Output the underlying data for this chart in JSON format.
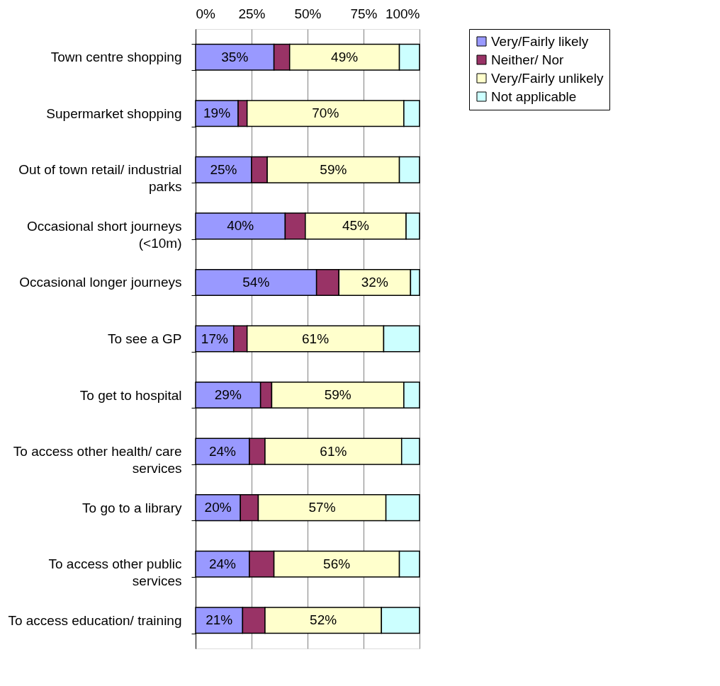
{
  "chart_data": {
    "type": "bar",
    "orientation": "horizontal",
    "stacked": true,
    "categories": [
      "Town centre shopping",
      "Supermarket shopping",
      "Out of town retail/ industrial parks",
      "Occasional short journeys (<10m)",
      "Occasional longer journeys",
      "To see a GP",
      "To get to hospital",
      "To access other health/ care services",
      "To go to a library",
      "To access other public services",
      "To access education/ training"
    ],
    "series": [
      {
        "name": "Very/Fairly likely",
        "color": "#9999ff",
        "values": [
          35,
          19,
          25,
          40,
          54,
          17,
          29,
          24,
          20,
          24,
          21
        ],
        "value_labels": [
          "35%",
          "19%",
          "25%",
          "40%",
          "54%",
          "17%",
          "29%",
          "24%",
          "20%",
          "24%",
          "21%"
        ]
      },
      {
        "name": "Neither/ Nor",
        "color": "#993366",
        "values": [
          7,
          4,
          7,
          9,
          10,
          6,
          5,
          7,
          8,
          11,
          10
        ]
      },
      {
        "name": "Very/Fairly unlikely",
        "color": "#ffffcc",
        "values": [
          49,
          70,
          59,
          45,
          32,
          61,
          59,
          61,
          57,
          56,
          52
        ],
        "value_labels": [
          "49%",
          "70%",
          "59%",
          "45%",
          "32%",
          "61%",
          "59%",
          "61%",
          "57%",
          "56%",
          "52%"
        ]
      },
      {
        "name": "Not applicable",
        "color": "#ccffff",
        "values": [
          9,
          7,
          9,
          6,
          4,
          16,
          7,
          8,
          15,
          9,
          17
        ]
      }
    ],
    "xlim": [
      0,
      100
    ],
    "xticks": [
      {
        "value": 0,
        "label": "0%"
      },
      {
        "value": 25,
        "label": "25%"
      },
      {
        "value": 50,
        "label": "50%"
      },
      {
        "value": 75,
        "label": "75%"
      },
      {
        "value": 100,
        "label": "100%"
      }
    ],
    "grid": "x",
    "legend": "right"
  }
}
